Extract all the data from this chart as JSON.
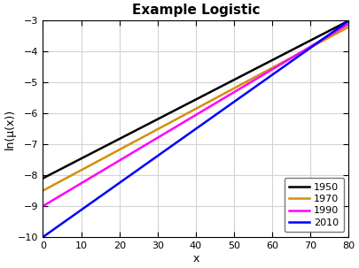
{
  "title": "Example Logistic",
  "xlabel": "x",
  "ylabel": "ln(μ(x))",
  "xlim": [
    0,
    80
  ],
  "ylim": [
    -10,
    -3
  ],
  "xticks": [
    0,
    10,
    20,
    30,
    40,
    50,
    60,
    70,
    80
  ],
  "yticks": [
    -10,
    -9,
    -8,
    -7,
    -6,
    -5,
    -4,
    -3
  ],
  "lines": [
    {
      "label": "1950",
      "color": "#000000",
      "intercept": -8.1,
      "slope": 0.06375
    },
    {
      "label": "1970",
      "color": "#D4900A",
      "intercept": -8.5,
      "slope": 0.06625
    },
    {
      "label": "1990",
      "color": "#FF00FF",
      "intercept": -9.0,
      "slope": 0.07375
    },
    {
      "label": "2010",
      "color": "#0000FF",
      "intercept": -10.0,
      "slope": 0.0875
    }
  ],
  "legend_loc": "lower right",
  "grid": true,
  "linewidth": 1.8,
  "title_fontsize": 11,
  "label_fontsize": 9,
  "tick_fontsize": 8,
  "legend_fontsize": 8,
  "background_color": "#ffffff",
  "grid_color": "#d3d3d3",
  "spine_color": "#000000",
  "figsize": [
    4.05,
    3.03
  ],
  "dpi": 100
}
